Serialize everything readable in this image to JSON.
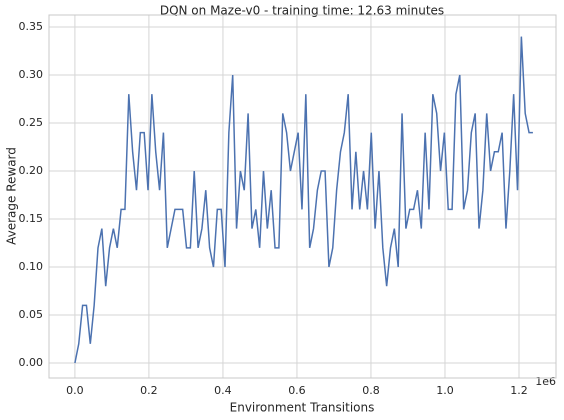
{
  "chart_data": {
    "type": "line",
    "title": "DQN on Maze-v0 - training time: 12.63 minutes",
    "x_label": "Environment Transitions",
    "y_label": "Average Reward",
    "x_offset_label": "1e6",
    "x": [
      0,
      10400,
      20800,
      31200,
      41600,
      52000,
      62400,
      72800,
      83200,
      93600,
      104000,
      114400,
      124800,
      135200,
      145600,
      156000,
      166400,
      176800,
      187200,
      197600,
      208000,
      218400,
      228800,
      239200,
      249600,
      260000,
      270400,
      280800,
      291200,
      301600,
      312000,
      322400,
      332800,
      343200,
      353600,
      364000,
      374400,
      384800,
      395200,
      405600,
      416000,
      426400,
      436800,
      447200,
      457600,
      468000,
      478400,
      488800,
      499200,
      509600,
      520000,
      530400,
      540800,
      551200,
      561600,
      572000,
      582400,
      592800,
      603200,
      613600,
      624000,
      634400,
      644800,
      655200,
      665600,
      676000,
      686400,
      696800,
      707200,
      717600,
      728000,
      738400,
      748800,
      759200,
      769600,
      780000,
      790400,
      800800,
      811200,
      821600,
      832000,
      842400,
      852800,
      863200,
      873600,
      884000,
      894400,
      904800,
      915200,
      925600,
      936000,
      946400,
      956800,
      967200,
      977600,
      988000,
      998400,
      1008800,
      1019200,
      1029600,
      1040000,
      1050400,
      1060800,
      1071200,
      1081600,
      1092000,
      1102400,
      1112800,
      1123200,
      1133600,
      1144000,
      1154400,
      1164800,
      1175200,
      1185600,
      1196000,
      1206400,
      1216800,
      1227200,
      1237600
    ],
    "series": [
      {
        "name": "DQN",
        "color": "#4c72b0",
        "values": [
          0.0,
          0.02,
          0.06,
          0.06,
          0.02,
          0.06,
          0.12,
          0.14,
          0.08,
          0.12,
          0.14,
          0.12,
          0.16,
          0.16,
          0.28,
          0.22,
          0.18,
          0.24,
          0.24,
          0.18,
          0.28,
          0.22,
          0.18,
          0.24,
          0.12,
          0.14,
          0.16,
          0.16,
          0.16,
          0.12,
          0.12,
          0.2,
          0.12,
          0.14,
          0.18,
          0.12,
          0.1,
          0.16,
          0.16,
          0.1,
          0.24,
          0.3,
          0.14,
          0.2,
          0.18,
          0.26,
          0.14,
          0.16,
          0.12,
          0.2,
          0.14,
          0.18,
          0.12,
          0.12,
          0.26,
          0.24,
          0.2,
          0.22,
          0.24,
          0.16,
          0.28,
          0.12,
          0.14,
          0.18,
          0.2,
          0.2,
          0.1,
          0.12,
          0.18,
          0.22,
          0.24,
          0.28,
          0.16,
          0.22,
          0.16,
          0.2,
          0.16,
          0.24,
          0.14,
          0.2,
          0.12,
          0.08,
          0.12,
          0.14,
          0.1,
          0.26,
          0.14,
          0.16,
          0.16,
          0.18,
          0.14,
          0.24,
          0.16,
          0.28,
          0.26,
          0.2,
          0.24,
          0.16,
          0.16,
          0.28,
          0.3,
          0.16,
          0.18,
          0.24,
          0.26,
          0.14,
          0.18,
          0.26,
          0.2,
          0.22,
          0.22,
          0.24,
          0.14,
          0.2,
          0.28,
          0.18,
          0.34,
          0.26,
          0.24,
          0.24
        ]
      }
    ],
    "xlim": [
      -70000,
      1300000
    ],
    "ylim": [
      -0.0156,
      0.3625
    ],
    "xticks": [
      {
        "value": 0,
        "label": "0.0"
      },
      {
        "value": 200000,
        "label": "0.2"
      },
      {
        "value": 400000,
        "label": "0.4"
      },
      {
        "value": 600000,
        "label": "0.6"
      },
      {
        "value": 800000,
        "label": "0.8"
      },
      {
        "value": 1000000,
        "label": "1.0"
      },
      {
        "value": 1200000,
        "label": "1.2"
      }
    ],
    "yticks": [
      {
        "value": 0,
        "label": "0.00"
      },
      {
        "value": 0.05,
        "label": "0.05"
      },
      {
        "value": 0.1,
        "label": "0.10"
      },
      {
        "value": 0.15,
        "label": "0.15"
      },
      {
        "value": 0.2,
        "label": "0.20"
      },
      {
        "value": 0.25,
        "label": "0.25"
      },
      {
        "value": 0.3,
        "label": "0.30"
      },
      {
        "value": 0.35,
        "label": "0.35"
      }
    ],
    "grid": true
  }
}
